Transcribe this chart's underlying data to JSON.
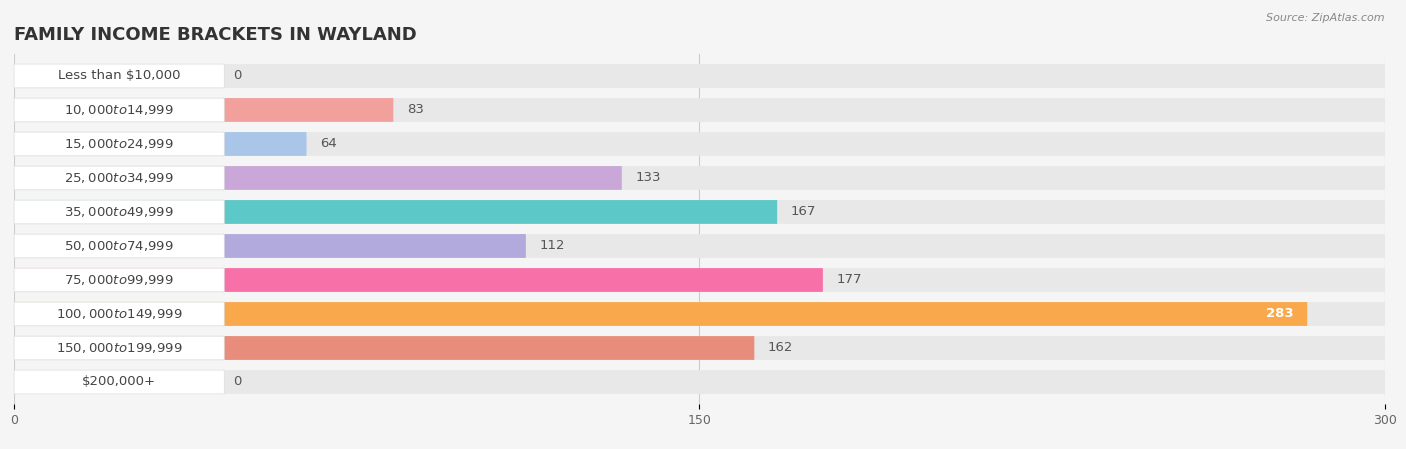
{
  "title": "FAMILY INCOME BRACKETS IN WAYLAND",
  "source": "Source: ZipAtlas.com",
  "categories": [
    "Less than $10,000",
    "$10,000 to $14,999",
    "$15,000 to $24,999",
    "$25,000 to $34,999",
    "$35,000 to $49,999",
    "$50,000 to $74,999",
    "$75,000 to $99,999",
    "$100,000 to $149,999",
    "$150,000 to $199,999",
    "$200,000+"
  ],
  "values": [
    0,
    83,
    64,
    133,
    167,
    112,
    177,
    283,
    162,
    0
  ],
  "bar_colors": [
    "#F9C896",
    "#F2A09C",
    "#A9C5E8",
    "#C9A8D9",
    "#5DC8C8",
    "#B2AADC",
    "#F870A8",
    "#F9A84C",
    "#E88C7C",
    "#A8C4E8"
  ],
  "xlim": [
    0,
    300
  ],
  "xticks": [
    0,
    150,
    300
  ],
  "background_color": "#f5f5f5",
  "bar_background": "#e8e8e8",
  "row_background": "#f0f0f0",
  "title_fontsize": 13,
  "label_fontsize": 9.5,
  "value_fontsize": 9.5,
  "label_color": "#444444",
  "value_color_outside": "#555555",
  "value_color_inside": "#ffffff"
}
